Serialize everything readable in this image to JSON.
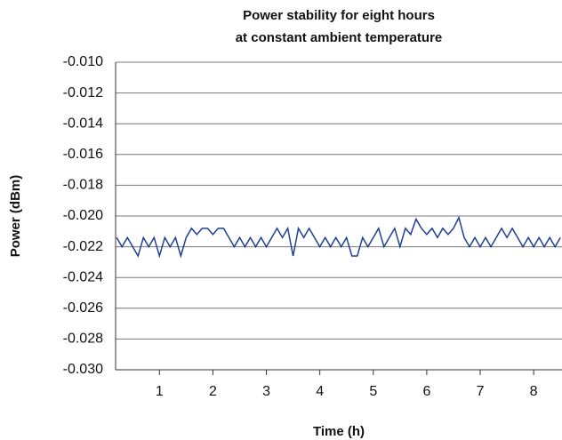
{
  "chart_data": {
    "type": "line",
    "title": [
      "Power stability for eight hours",
      "at constant ambient temperature"
    ],
    "x_label": "Time (h)",
    "y_label": "Power (dBm)",
    "x": [
      0.2,
      0.3,
      0.4,
      0.5,
      0.6,
      0.7,
      0.8,
      0.9,
      1.0,
      1.1,
      1.2,
      1.3,
      1.4,
      1.5,
      1.6,
      1.7,
      1.8,
      1.9,
      2.0,
      2.1,
      2.2,
      2.3,
      2.4,
      2.5,
      2.6,
      2.7,
      2.8,
      2.9,
      3.0,
      3.1,
      3.2,
      3.3,
      3.4,
      3.5,
      3.6,
      3.7,
      3.8,
      3.9,
      4.0,
      4.1,
      4.2,
      4.3,
      4.4,
      4.5,
      4.6,
      4.7,
      4.8,
      4.9,
      5.0,
      5.1,
      5.2,
      5.3,
      5.4,
      5.5,
      5.6,
      5.7,
      5.8,
      5.9,
      6.0,
      6.1,
      6.2,
      6.3,
      6.4,
      6.5,
      6.6,
      6.7,
      6.8,
      6.9,
      7.0,
      7.1,
      7.2,
      7.3,
      7.4,
      7.5,
      7.6,
      7.7,
      7.8,
      7.9,
      8.0,
      8.1,
      8.2,
      8.3,
      8.4,
      8.5
    ],
    "series": [
      {
        "color": "#1f3f94",
        "values": [
          -0.0214,
          -0.022,
          -0.0214,
          -0.022,
          -0.0226,
          -0.0214,
          -0.022,
          -0.0214,
          -0.0226,
          -0.0214,
          -0.022,
          -0.0214,
          -0.0226,
          -0.0214,
          -0.0208,
          -0.0212,
          -0.0208,
          -0.0208,
          -0.0212,
          -0.0208,
          -0.0208,
          -0.0214,
          -0.022,
          -0.0214,
          -0.022,
          -0.0214,
          -0.022,
          -0.0214,
          -0.022,
          -0.0214,
          -0.0208,
          -0.0214,
          -0.0208,
          -0.0226,
          -0.0208,
          -0.0214,
          -0.0208,
          -0.0214,
          -0.022,
          -0.0214,
          -0.022,
          -0.0214,
          -0.022,
          -0.0214,
          -0.0226,
          -0.0226,
          -0.0214,
          -0.022,
          -0.0214,
          -0.0208,
          -0.022,
          -0.0214,
          -0.0208,
          -0.022,
          -0.0208,
          -0.0212,
          -0.0202,
          -0.0208,
          -0.0212,
          -0.0208,
          -0.0214,
          -0.0208,
          -0.0212,
          -0.0208,
          -0.0201,
          -0.0214,
          -0.022,
          -0.0214,
          -0.022,
          -0.0214,
          -0.022,
          -0.0214,
          -0.0208,
          -0.0214,
          -0.0208,
          -0.0214,
          -0.022,
          -0.0214,
          -0.022,
          -0.0214,
          -0.022,
          -0.0214,
          -0.022,
          -0.0214
        ]
      }
    ],
    "xlim": [
      0.18,
      8.53
    ],
    "xticks": [
      1,
      2,
      3,
      4,
      5,
      6,
      7,
      8
    ],
    "ylim": [
      -0.03,
      -0.01
    ],
    "yticks": [
      {
        "value": -0.03,
        "label": "-0.030"
      },
      {
        "value": -0.028,
        "label": "-0.028"
      },
      {
        "value": -0.026,
        "label": "-0.026"
      },
      {
        "value": -0.024,
        "label": "-0.024"
      },
      {
        "value": -0.022,
        "label": "-0.022"
      },
      {
        "value": -0.02,
        "label": "-0.020"
      },
      {
        "value": -0.018,
        "label": "-0.018"
      },
      {
        "value": -0.016,
        "label": "-0.016"
      },
      {
        "value": -0.014,
        "label": "-0.014"
      },
      {
        "value": -0.012,
        "label": "-0.012"
      },
      {
        "value": -0.01,
        "label": "-0.010"
      }
    ],
    "grid": true
  }
}
